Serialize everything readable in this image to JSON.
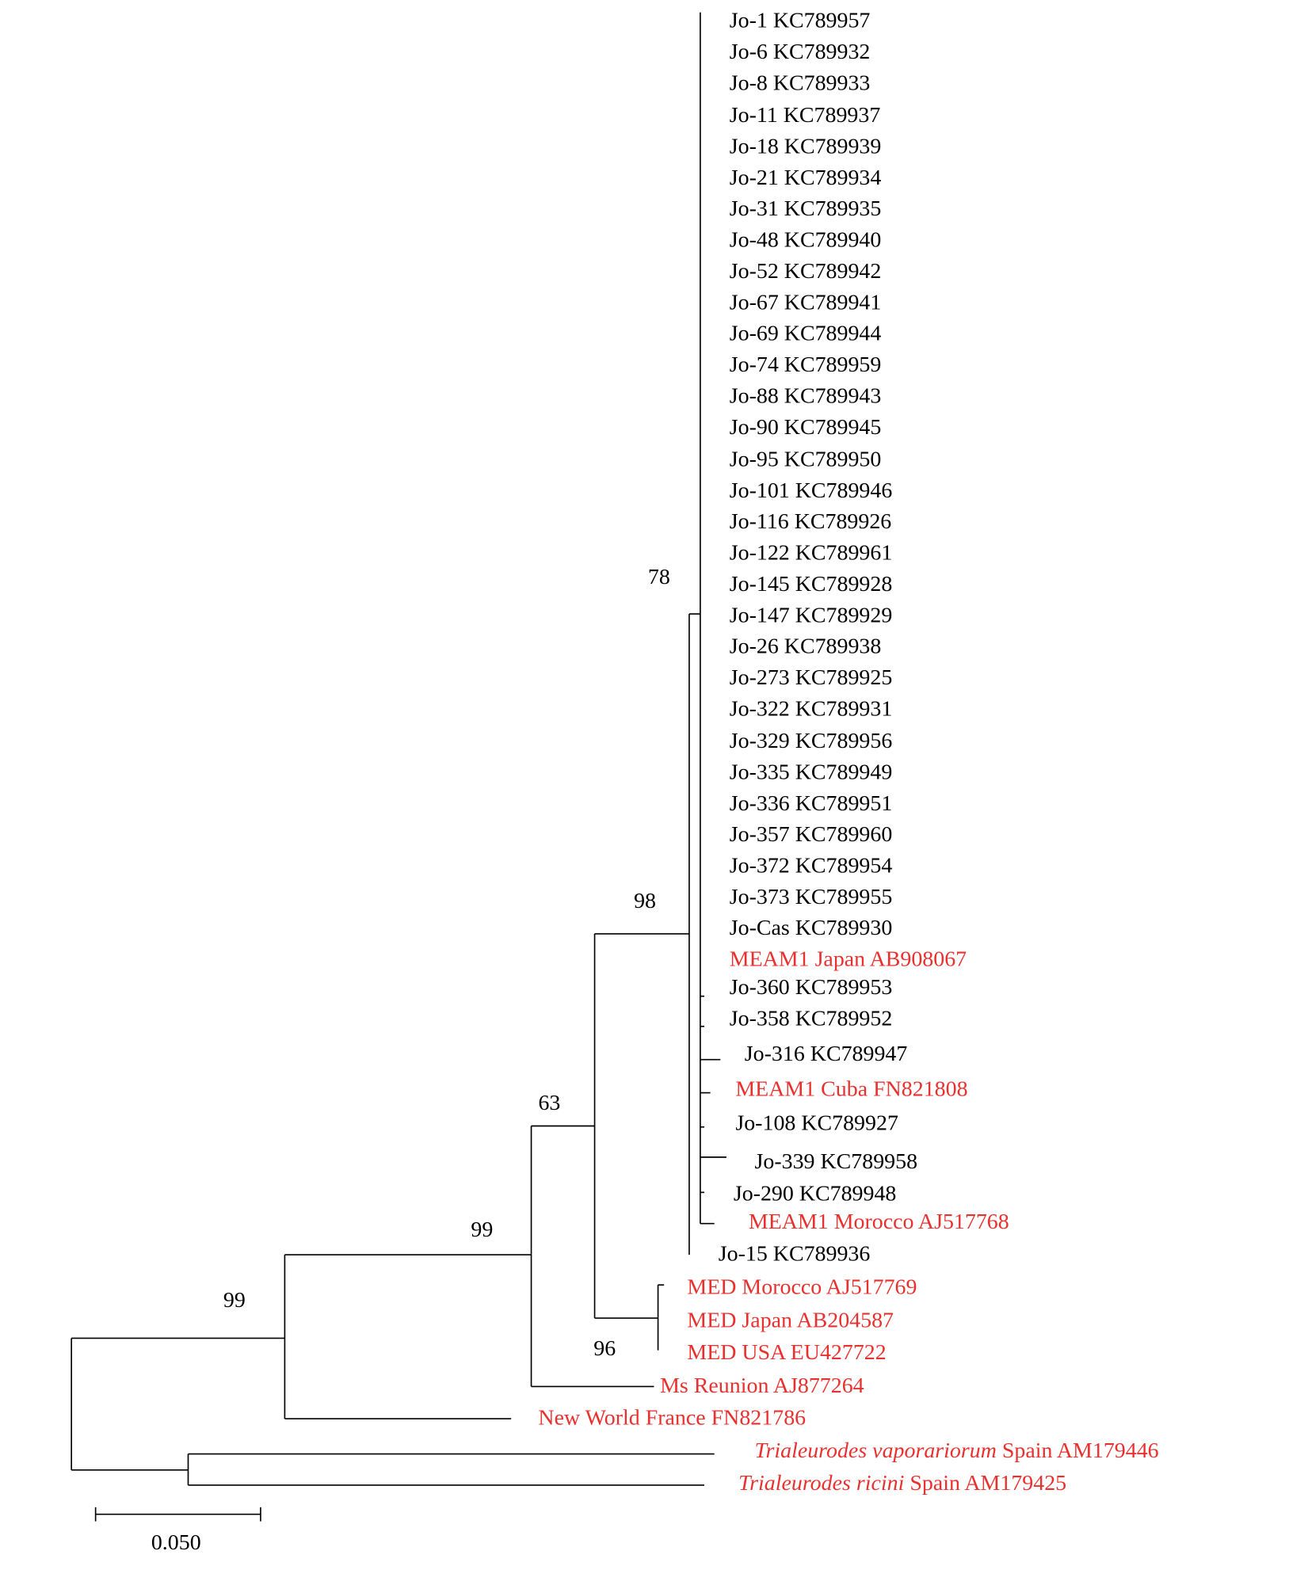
{
  "leaves": [
    "Jo-1 KC789957",
    "Jo-6 KC789932",
    "Jo-8 KC789933",
    "Jo-11 KC789937",
    "Jo-18 KC789939",
    "Jo-21 KC789934",
    "Jo-31 KC789935",
    "Jo-48 KC789940",
    "Jo-52 KC789942",
    "Jo-67 KC789941",
    "Jo-69 KC789944",
    "Jo-74 KC789959",
    "Jo-88 KC789943",
    "Jo-90 KC789945",
    "Jo-95 KC789950",
    "Jo-101 KC789946",
    "Jo-116 KC789926",
    "Jo-122 KC789961",
    "Jo-145 KC789928",
    "Jo-147 KC789929",
    "Jo-26 KC789938",
    "Jo-273 KC789925",
    "Jo-322 KC789931",
    "Jo-329 KC789956",
    "Jo-335 KC789949",
    "Jo-336 KC789951",
    "Jo-357 KC789960",
    "Jo-372 KC789954",
    "Jo-373 KC789955",
    "Jo-Cas KC789930",
    "MEAM1 Japan AB908067",
    "Jo-360 KC789953",
    "Jo-358 KC789952",
    "Jo-316 KC789947",
    "MEAM1 Cuba FN821808",
    "Jo-108 KC789927",
    "Jo-339 KC789958",
    "Jo-290 KC789948",
    "MEAM1 Morocco AJ517768",
    "Jo-15 KC789936",
    "MED Morocco AJ517769",
    "MED Japan AB204587",
    "MED USA EU427722",
    "Ms Reunion AJ877264",
    "New World France FN821786"
  ],
  "outgroups": [
    {
      "species": "Trialeurodes vaporariorum",
      "text": "Spain AM179446"
    },
    {
      "species": "Trialeurodes ricini",
      "text": "Spain AM179425"
    }
  ],
  "bootstrap": [
    "78",
    "98",
    "63",
    "99",
    "99",
    "96"
  ],
  "scale_label": "0.050"
}
